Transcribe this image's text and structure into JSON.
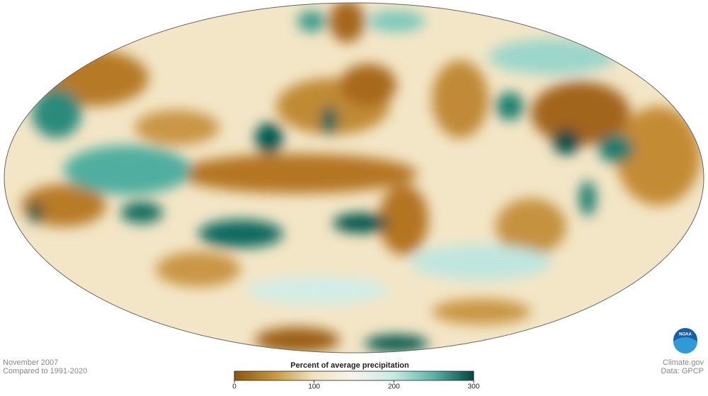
{
  "map": {
    "date": "November 2007",
    "baseline": "Compared to 1991-2020",
    "legend": {
      "title": "Percent of average precipitation",
      "range": [
        0,
        300
      ],
      "ticks": [
        0,
        100,
        200,
        300
      ],
      "colors": [
        "#8c5510",
        "#c8963f",
        "#f2e3bd",
        "#f7f4ec",
        "#c7eae2",
        "#5cb3a6",
        "#01463f"
      ]
    },
    "credit": "Climate.gov",
    "source": "Data: GPCP",
    "logo": "NOAA"
  }
}
